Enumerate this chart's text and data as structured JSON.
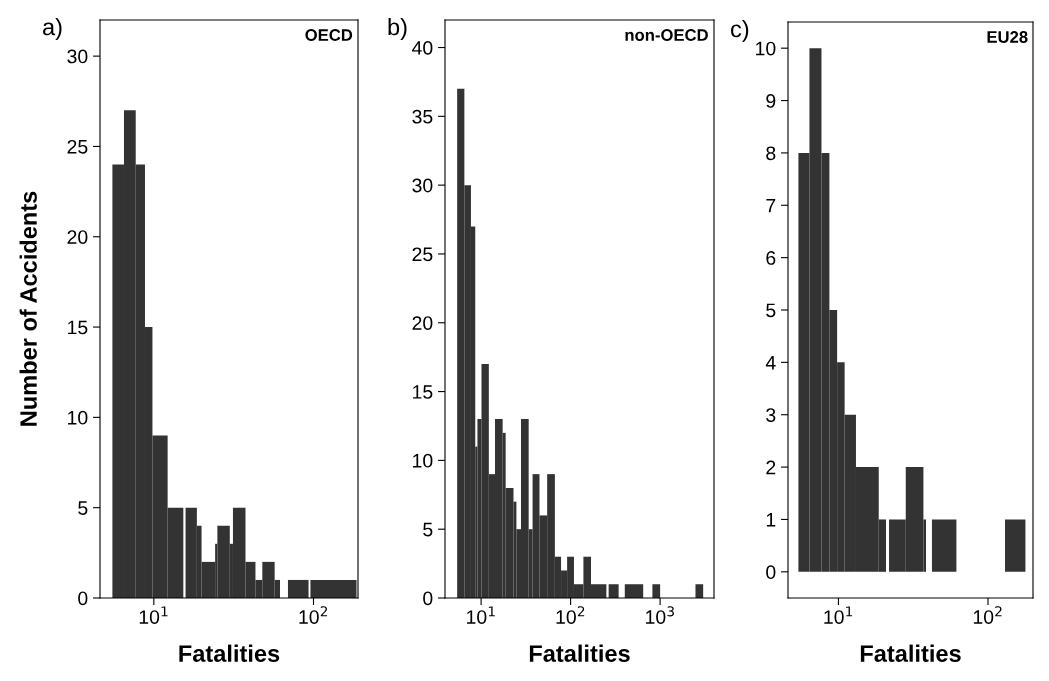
{
  "chart_data": [
    {
      "type": "histogram",
      "title": "OECD",
      "annotations": [
        "a)"
      ],
      "xlabel": "Fatalities",
      "ylabel": "Number of Accidents",
      "log": "x",
      "grid": false,
      "color": "#333333",
      "bins": [
        5.5,
        6.5,
        7.7,
        8.8,
        9.8,
        12.2,
        15.3,
        15.8,
        18.6,
        19.9,
        24.2,
        25.0,
        29.9,
        31.3,
        37.5,
        43.3,
        47.8,
        57.1,
        61.7,
        69.2,
        93.1,
        95.7,
        186
      ],
      "values": [
        24,
        27,
        24,
        15,
        9,
        5,
        0,
        5,
        4,
        2,
        3,
        4,
        3,
        5,
        2,
        1,
        2,
        1,
        0,
        1,
        0,
        1
      ],
      "xlim": [
        4.6,
        190
      ],
      "xticks": [
        {
          "value": 10,
          "label": "10$^{1}$"
        },
        {
          "value": 100,
          "label": "10$^{2}$"
        }
      ],
      "ylim": [
        0,
        32
      ],
      "yticks": [
        0,
        5,
        10,
        15,
        20,
        25,
        30
      ]
    },
    {
      "type": "histogram",
      "title": "non-OECD",
      "annotations": [
        "b)"
      ],
      "xlabel": "Fatalities",
      "log": "x",
      "grid": false,
      "color": "#333333",
      "bins": [
        5.4,
        6.5,
        7.7,
        8.6,
        9.1,
        10.1,
        12.2,
        14.3,
        17.4,
        18.8,
        23.0,
        24.8,
        27.9,
        34.0,
        37.6,
        44.9,
        54.7,
        66.7,
        78.2,
        91.4,
        109,
        139,
        169,
        251,
        266,
        344,
        403,
        647,
        820,
        1000,
        2483,
        3027
      ],
      "values": [
        37,
        30,
        27,
        11,
        13,
        17,
        9,
        13,
        12,
        8,
        7,
        5,
        13,
        5,
        9,
        6,
        9,
        3,
        2,
        3,
        1,
        3,
        1,
        0,
        1,
        0,
        1,
        0,
        1,
        0,
        1
      ],
      "xlim": [
        3.95,
        4000
      ],
      "xticks": [
        {
          "value": 10,
          "label": "10$^{1}$"
        },
        {
          "value": 100,
          "label": "10$^{2}$"
        },
        {
          "value": 1000,
          "label": "10$^{3}$"
        }
      ],
      "ylim": [
        0,
        42
      ],
      "yticks": [
        0,
        5,
        10,
        15,
        20,
        25,
        30,
        35,
        40
      ]
    },
    {
      "type": "histogram",
      "title": "EU28",
      "annotations": [
        "c)"
      ],
      "xlabel": "Fatalities",
      "log": "x",
      "grid": false,
      "color": "#333333",
      "bins": [
        5.4,
        6.4,
        7.7,
        8.7,
        9.8,
        11.0,
        13.1,
        18.6,
        20.8,
        21.8,
        28.2,
        37.0,
        38.5,
        42.2,
        61.5,
        130,
        178
      ],
      "values": [
        8,
        10,
        8,
        5,
        4,
        3,
        2,
        1,
        0,
        1,
        2,
        1,
        0,
        1,
        0,
        1
      ],
      "xlim": [
        4.6,
        200
      ],
      "xticks": [
        {
          "value": 10,
          "label": "10$^{1}$"
        },
        {
          "value": 100,
          "label": "10$^{2}$"
        }
      ],
      "ylim": [
        -0.5,
        10.5
      ],
      "yticks": [
        0,
        1,
        2,
        3,
        4,
        5,
        6,
        7,
        8,
        9,
        10
      ]
    }
  ]
}
